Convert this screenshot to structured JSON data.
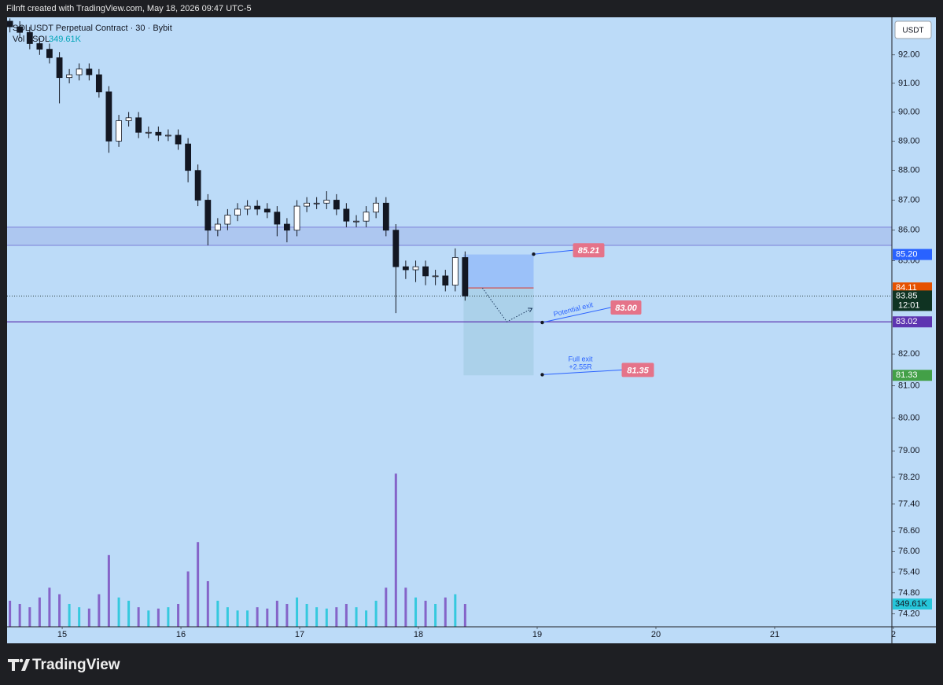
{
  "header": {
    "text": "Filnft created with TradingView.com, May 18, 2026 09:47 UTC-5"
  },
  "footer": {
    "brand": "TradingView"
  },
  "chart_data": {
    "type": "candlestick",
    "title": "SOLUSDT Perpetual Contract · 30 · Bybit",
    "currency": "USDT",
    "log_scale": true,
    "grid": false,
    "background": "#bcdbf8",
    "xlim": [
      14.536,
      21.987
    ],
    "ylim": [
      73.83,
      93.34
    ],
    "xticks": [
      15,
      16,
      17,
      18,
      19,
      20,
      21,
      {
        "value": 22,
        "label": "2"
      }
    ],
    "yticks": [
      {
        "value": 92,
        "label": "92.00"
      },
      {
        "value": 91,
        "label": "91.00"
      },
      {
        "value": 90,
        "label": "90.00"
      },
      {
        "value": 89,
        "label": "89.00"
      },
      {
        "value": 88,
        "label": "88.00"
      },
      {
        "value": 87,
        "label": "87.00"
      },
      {
        "value": 86,
        "label": "86.00"
      },
      {
        "value": 85,
        "label": "85.00"
      },
      {
        "value": 82,
        "label": "82.00"
      },
      {
        "value": 81,
        "label": "81.00"
      },
      {
        "value": 80,
        "label": "80.00"
      },
      {
        "value": 79,
        "label": "79.00"
      },
      {
        "value": 78.2,
        "label": "78.20"
      },
      {
        "value": 77.4,
        "label": "77.40"
      },
      {
        "value": 76.6,
        "label": "76.60"
      },
      {
        "value": 76,
        "label": "76.00"
      },
      {
        "value": 75.4,
        "label": "75.40"
      },
      {
        "value": 74.8,
        "label": "74.80"
      },
      {
        "value": 74.2,
        "label": "74.20"
      }
    ],
    "x": [
      14.56,
      14.643,
      14.727,
      14.81,
      14.893,
      14.977,
      15.06,
      15.143,
      15.227,
      15.31,
      15.393,
      15.477,
      15.56,
      15.643,
      15.727,
      15.81,
      15.893,
      15.977,
      16.06,
      16.143,
      16.227,
      16.31,
      16.393,
      16.477,
      16.56,
      16.643,
      16.727,
      16.81,
      16.893,
      16.977,
      17.06,
      17.143,
      17.227,
      17.31,
      17.393,
      17.477,
      17.56,
      17.643,
      17.727,
      17.81,
      17.893,
      17.977,
      18.06,
      18.143,
      18.227,
      18.31,
      18.393
    ],
    "series": [
      {
        "name": "SOLUSDT",
        "up_color": "#ffffff",
        "down_color": "#131722",
        "open": [
          93.2,
          93.0,
          92.8,
          92.4,
          92.2,
          91.9,
          91.2,
          91.3,
          91.5,
          91.3,
          90.7,
          89.0,
          89.7,
          89.8,
          89.3,
          89.3,
          89.2,
          89.2,
          88.9,
          88.0,
          87.0,
          86.0,
          86.2,
          86.5,
          86.7,
          86.8,
          86.7,
          86.6,
          86.2,
          86.0,
          86.8,
          86.9,
          86.9,
          87.0,
          86.7,
          86.3,
          86.3,
          86.6,
          86.9,
          86.0,
          84.8,
          84.7,
          84.8,
          84.5,
          84.5,
          84.2,
          85.1
        ],
        "high": [
          93.3,
          93.2,
          93.0,
          92.6,
          92.4,
          92.1,
          91.5,
          91.7,
          91.7,
          91.5,
          90.9,
          89.9,
          90.0,
          90.0,
          89.5,
          89.5,
          89.4,
          89.4,
          89.1,
          88.2,
          87.2,
          86.4,
          86.7,
          86.9,
          87.0,
          87.0,
          86.9,
          86.8,
          86.4,
          87.0,
          87.1,
          87.1,
          87.3,
          87.2,
          86.9,
          86.5,
          86.8,
          87.1,
          87.1,
          86.2,
          85.0,
          85.0,
          85.0,
          84.7,
          84.7,
          85.4,
          85.3
        ],
        "low": [
          92.8,
          92.6,
          92.2,
          92.0,
          91.7,
          90.3,
          91.0,
          91.1,
          91.1,
          90.5,
          88.6,
          88.8,
          89.5,
          89.1,
          89.1,
          89.0,
          89.0,
          88.7,
          87.6,
          86.8,
          85.5,
          85.8,
          86.0,
          86.3,
          86.5,
          86.5,
          86.4,
          85.8,
          85.6,
          85.8,
          86.6,
          86.7,
          86.7,
          86.5,
          86.1,
          86.1,
          86.1,
          86.4,
          85.8,
          83.3,
          84.4,
          84.3,
          84.2,
          84.2,
          84.0,
          84.0,
          83.7
        ],
        "close": [
          93.0,
          92.8,
          92.4,
          92.2,
          91.9,
          91.2,
          91.3,
          91.5,
          91.3,
          90.7,
          89.0,
          89.7,
          89.8,
          89.3,
          89.3,
          89.2,
          89.2,
          88.9,
          88.0,
          87.0,
          86.0,
          86.2,
          86.5,
          86.7,
          86.8,
          86.7,
          86.6,
          86.2,
          86.0,
          86.8,
          86.9,
          86.9,
          87.0,
          86.7,
          86.3,
          86.3,
          86.6,
          86.9,
          86.0,
          84.8,
          84.7,
          84.8,
          84.5,
          84.5,
          84.2,
          85.1,
          83.85
        ]
      }
    ],
    "volume": {
      "name": "Vol · SOL",
      "last_label": "349.61K",
      "up_color": "#26c6da",
      "down_color": "#7e57c2",
      "y2lim": [
        0,
        9350
      ],
      "values": [
        400,
        350,
        300,
        450,
        600,
        500,
        350,
        300,
        280,
        500,
        1100,
        450,
        400,
        300,
        250,
        280,
        300,
        350,
        850,
        1300,
        700,
        400,
        300,
        250,
        250,
        300,
        280,
        400,
        350,
        450,
        350,
        300,
        280,
        300,
        350,
        300,
        250,
        400,
        600,
        2350,
        600,
        450,
        400,
        350,
        450,
        500,
        349.61
      ]
    },
    "zone": {
      "low": 85.5,
      "high": 86.1,
      "color": "#7b7fd8"
    },
    "level_color": "#5e35b1",
    "price_labels": [
      {
        "value": 85.2,
        "label": "85.20",
        "color": "#2962ff"
      },
      {
        "value": 84.11,
        "label": "84.11",
        "color": "#e65100"
      },
      {
        "value": 83.85,
        "label": "83.85",
        "color": "#0f3322"
      },
      {
        "value": 83.02,
        "label": "83.02",
        "color": "#5e35b1"
      },
      {
        "value": 81.33,
        "label": "81.33",
        "color": "#43a047"
      }
    ],
    "countdown": "12:01",
    "position": {
      "x_start": 18.38,
      "x_end": 18.97,
      "stop": 85.2,
      "entry": 84.11,
      "target": 81.33
    },
    "callouts": [
      {
        "price": 85.21
      },
      {
        "price": {
          "value": 83,
          "label": "83.00"
        },
        "note": [
          "Potential exit"
        ]
      },
      {
        "price": 81.35,
        "note": [
          "Full exit",
          "+2.55R"
        ]
      }
    ],
    "callout_color": "#e57389"
  }
}
